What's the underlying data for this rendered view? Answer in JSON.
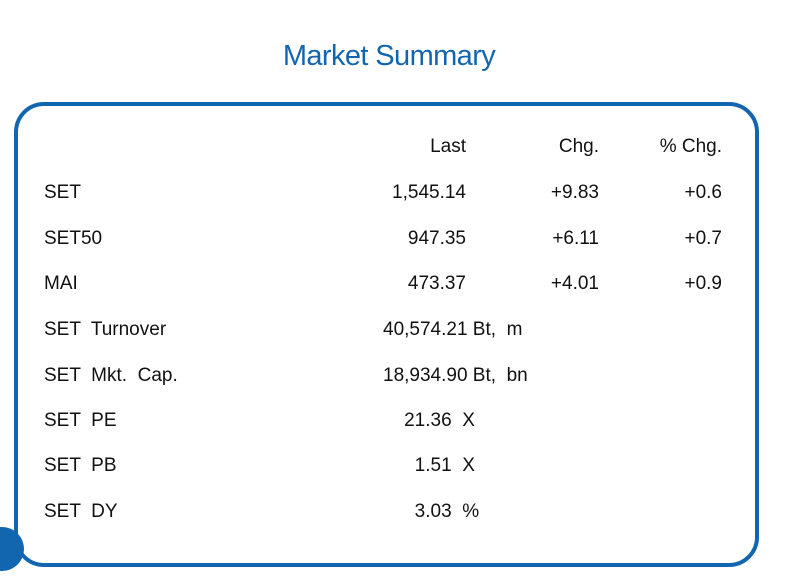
{
  "title": "Market Summary",
  "header": {
    "last": "Last",
    "chg": "Chg.",
    "pct_chg": "% Chg."
  },
  "indices": [
    {
      "name": "SET",
      "last": "1,545.14",
      "chg": "+9.83",
      "pct": "+0.6"
    },
    {
      "name": "SET50",
      "last": "947.35",
      "chg": "+6.11",
      "pct": "+0.7"
    },
    {
      "name": "MAI",
      "last": "473.37",
      "chg": "+4.01",
      "pct": "+0.9"
    }
  ],
  "stats": [
    {
      "name": "SET  Turnover",
      "value": "40,574.21 Bt,  m"
    },
    {
      "name": "SET  Mkt.  Cap.",
      "value": "18,934.90 Bt,  bn"
    },
    {
      "name": "SET  PE",
      "value": "    21.36  X"
    },
    {
      "name": "SET  PB",
      "value": "      1.51  X"
    },
    {
      "name": "SET  DY",
      "value": "      3.03  %"
    }
  ],
  "colors": {
    "accent": "#1266b0"
  }
}
